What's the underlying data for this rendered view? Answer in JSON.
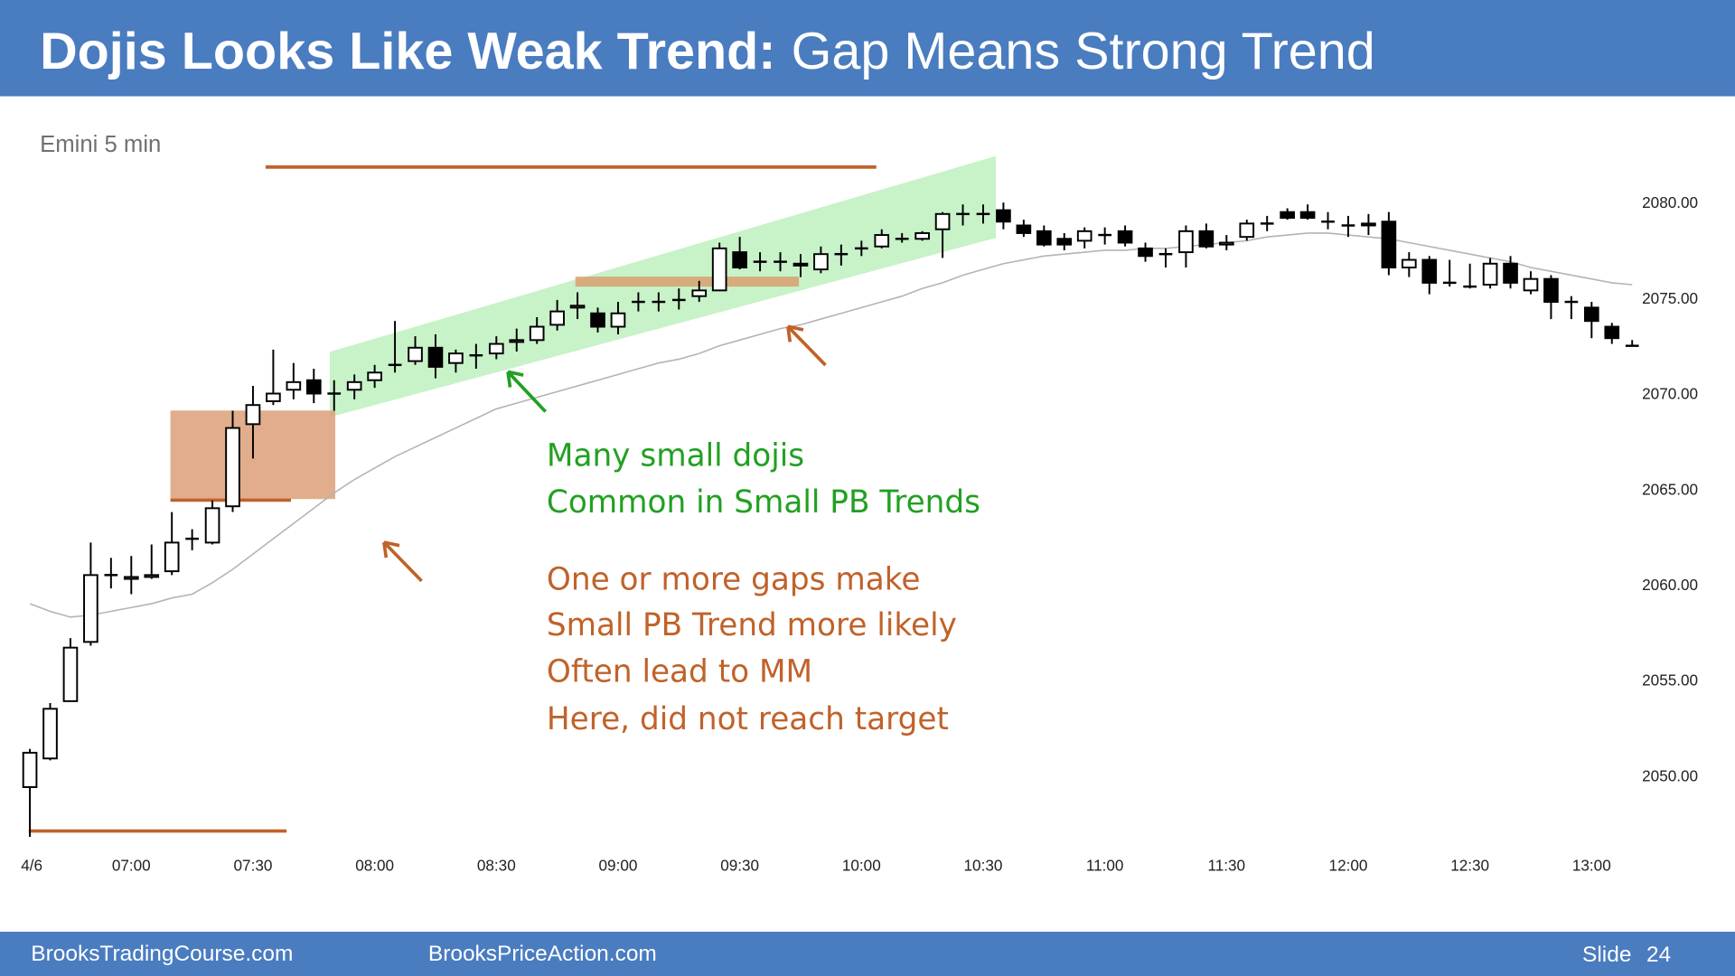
{
  "header": {
    "title_bold": "Dojis Looks Like Weak Trend:",
    "title_rest": "Gap Means Strong Trend"
  },
  "chart_data": {
    "type": "candlestick",
    "subtitle": "Emini 5 min",
    "categories": [
      "4/6",
      null,
      null,
      null,
      null,
      "07:00",
      null,
      null,
      null,
      null,
      null,
      "07:30",
      null,
      null,
      null,
      null,
      null,
      "08:00",
      null,
      null,
      null,
      null,
      null,
      "08:30",
      null,
      null,
      null,
      null,
      null,
      "09:00",
      null,
      null,
      null,
      null,
      null,
      "09:30",
      null,
      null,
      null,
      null,
      null,
      "10:00",
      null,
      null,
      null,
      null,
      null,
      "10:30",
      null,
      null,
      null,
      null,
      null,
      "11:00",
      null,
      null,
      null,
      null,
      null,
      "11:30",
      null,
      null,
      null,
      null,
      null,
      "12:00",
      null,
      null,
      null,
      null,
      null,
      "12:30",
      null,
      null,
      null,
      null,
      null,
      "13:00",
      null,
      null
    ],
    "open": [
      2049.4,
      2050.9,
      2053.9,
      2057.0,
      2060.5,
      2060.3,
      2060.4,
      2060.7,
      2062.4,
      2062.2,
      2064.1,
      2068.4,
      2069.6,
      2070.2,
      2070.7,
      2070.0,
      2070.2,
      2070.7,
      2071.5,
      2071.7,
      2072.4,
      2071.6,
      2072.0,
      2072.1,
      2072.7,
      2072.8,
      2073.6,
      2074.5,
      2074.2,
      2073.5,
      2074.8,
      2074.8,
      2074.9,
      2075.1,
      2075.4,
      2077.4,
      2076.9,
      2076.9,
      2076.8,
      2076.5,
      2077.3,
      2077.6,
      2077.7,
      2078.1,
      2078.1,
      2078.6,
      2079.4,
      2079.4,
      2079.6,
      2078.8,
      2078.5,
      2078.1,
      2078.0,
      2078.3,
      2078.5,
      2077.6,
      2077.3,
      2077.4,
      2078.5,
      2077.8,
      2078.2,
      2078.9,
      2079.5,
      2079.5,
      2079.0,
      2078.8,
      2078.9,
      2079.0,
      2076.6,
      2077.0,
      2075.8,
      2075.6,
      2075.7,
      2076.8,
      2075.4,
      2076.0,
      2074.8,
      2074.5,
      2073.5,
      2072.5
    ],
    "high": [
      2051.4,
      2053.8,
      2057.2,
      2062.2,
      2061.4,
      2061.5,
      2062.1,
      2063.8,
      2062.9,
      2064.4,
      2069.1,
      2070.4,
      2072.3,
      2071.6,
      2071.3,
      2070.7,
      2071.0,
      2071.5,
      2073.8,
      2073.0,
      2073.1,
      2072.3,
      2072.6,
      2073.0,
      2073.4,
      2074.0,
      2074.9,
      2075.3,
      2074.5,
      2074.8,
      2075.3,
      2075.3,
      2075.5,
      2075.9,
      2077.9,
      2078.2,
      2077.4,
      2077.4,
      2077.3,
      2077.7,
      2077.8,
      2078.0,
      2078.6,
      2078.4,
      2078.5,
      2079.5,
      2079.9,
      2079.9,
      2080.0,
      2079.1,
      2078.8,
      2078.4,
      2078.7,
      2078.7,
      2078.8,
      2077.9,
      2077.6,
      2078.8,
      2078.9,
      2078.3,
      2079.1,
      2079.3,
      2079.7,
      2079.9,
      2079.5,
      2079.3,
      2079.4,
      2079.5,
      2077.4,
      2077.2,
      2077.0,
      2076.8,
      2077.1,
      2077.2,
      2076.4,
      2076.2,
      2075.1,
      2074.8,
      2073.7,
      2072.8
    ],
    "low": [
      2046.8,
      2050.8,
      2053.9,
      2056.8,
      2059.8,
      2059.5,
      2060.3,
      2060.5,
      2061.8,
      2062.1,
      2063.8,
      2066.6,
      2069.4,
      2069.7,
      2069.5,
      2069.1,
      2069.7,
      2070.3,
      2071.1,
      2071.5,
      2070.8,
      2071.1,
      2071.3,
      2071.8,
      2072.2,
      2072.6,
      2073.3,
      2073.9,
      2073.2,
      2073.1,
      2074.3,
      2074.3,
      2074.4,
      2074.8,
      2075.4,
      2076.5,
      2076.4,
      2076.4,
      2076.1,
      2076.3,
      2076.7,
      2077.2,
      2077.6,
      2077.9,
      2078.0,
      2077.1,
      2078.8,
      2078.9,
      2078.6,
      2078.2,
      2077.7,
      2077.5,
      2077.6,
      2077.8,
      2077.7,
      2076.9,
      2076.6,
      2076.6,
      2077.6,
      2077.5,
      2078.0,
      2078.5,
      2079.1,
      2079.1,
      2078.6,
      2078.2,
      2078.3,
      2076.2,
      2076.1,
      2075.2,
      2075.6,
      2075.5,
      2075.5,
      2075.5,
      2075.2,
      2073.9,
      2073.9,
      2072.9,
      2072.6,
      2072.5
    ],
    "close": [
      2051.2,
      2053.5,
      2056.7,
      2060.5,
      2060.5,
      2060.4,
      2060.5,
      2062.2,
      2062.4,
      2064.0,
      2068.2,
      2069.4,
      2070.0,
      2070.6,
      2070.0,
      2070.0,
      2070.6,
      2071.1,
      2071.5,
      2072.4,
      2071.4,
      2072.1,
      2072.0,
      2072.6,
      2072.8,
      2073.5,
      2074.3,
      2074.6,
      2073.5,
      2074.2,
      2074.8,
      2074.8,
      2074.9,
      2075.4,
      2077.6,
      2076.6,
      2076.9,
      2076.9,
      2076.7,
      2077.3,
      2077.3,
      2077.6,
      2078.3,
      2078.1,
      2078.4,
      2079.4,
      2079.4,
      2079.4,
      2079.0,
      2078.4,
      2077.8,
      2077.8,
      2078.5,
      2078.3,
      2077.9,
      2077.2,
      2077.3,
      2078.5,
      2077.7,
      2077.9,
      2078.9,
      2078.9,
      2079.2,
      2079.2,
      2079.0,
      2078.8,
      2078.8,
      2076.6,
      2077.0,
      2075.8,
      2075.8,
      2075.6,
      2076.8,
      2075.8,
      2076.0,
      2074.8,
      2074.8,
      2073.8,
      2072.9,
      2072.5
    ],
    "up_color": "#ffffff",
    "down_color": "#000000",
    "ema": {
      "color": "#b4b4b4",
      "values": [
        2059.0,
        2058.6,
        2058.3,
        2058.4,
        2058.6,
        2058.8,
        2059.0,
        2059.3,
        2059.5,
        2060.1,
        2060.8,
        2061.6,
        2062.4,
        2063.2,
        2064.0,
        2064.8,
        2065.5,
        2066.1,
        2066.7,
        2067.2,
        2067.7,
        2068.2,
        2068.7,
        2069.2,
        2069.5,
        2069.8,
        2070.1,
        2070.4,
        2070.7,
        2071.0,
        2071.3,
        2071.6,
        2071.8,
        2072.1,
        2072.5,
        2072.8,
        2073.1,
        2073.4,
        2073.6,
        2073.9,
        2074.2,
        2074.5,
        2074.8,
        2075.1,
        2075.5,
        2075.8,
        2076.2,
        2076.5,
        2076.8,
        2077.0,
        2077.2,
        2077.3,
        2077.4,
        2077.5,
        2077.5,
        2077.6,
        2077.6,
        2077.7,
        2077.8,
        2077.9,
        2078.0,
        2078.2,
        2078.3,
        2078.4,
        2078.4,
        2078.3,
        2078.2,
        2078.1,
        2077.9,
        2077.7,
        2077.5,
        2077.3,
        2077.1,
        2076.9,
        2076.6,
        2076.4,
        2076.2,
        2076.0,
        2075.8,
        2075.7
      ]
    },
    "ylim": [
      2046,
      2082
    ],
    "yticks": [
      {
        "value": 2050,
        "label": "2050.00"
      },
      {
        "value": 2055,
        "label": "2055.00"
      },
      {
        "value": 2060,
        "label": "2060.00"
      },
      {
        "value": 2065,
        "label": "2065.00"
      },
      {
        "value": 2070,
        "label": "2070.00"
      },
      {
        "value": 2075,
        "label": "2075.00"
      },
      {
        "value": 2080,
        "label": "2080.00"
      }
    ],
    "annotations": {
      "green": [
        "Many small dojis",
        "Common in Small PB Trends"
      ],
      "orange": [
        "One or more gaps make",
        "Small PB Trend more likely",
        "Often lead to MM",
        "Here, did not reach target"
      ]
    }
  },
  "footer": {
    "left": "BrooksTradingCourse.com",
    "middle": "BrooksPriceAction.com",
    "slide_label": "Slide",
    "slide_number": "24"
  }
}
